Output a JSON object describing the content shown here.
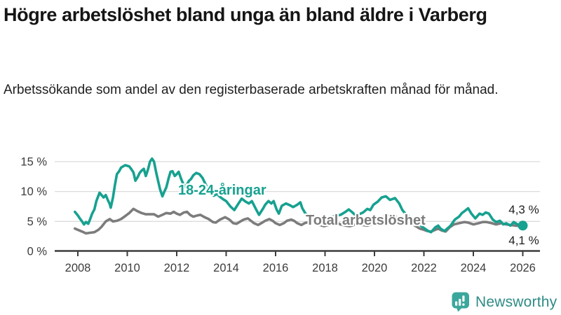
{
  "header": {
    "title": "Högre arbetslöshet bland unga än bland äldre i Varberg",
    "subtitle": "Arbetssökande som andel av den registerbaserade arbetskraften månad för månad."
  },
  "footer": {
    "brand": "Newsworthy",
    "logo_icon": "speech-bubble-bar-chart-icon"
  },
  "colors": {
    "youth_line": "#17A190",
    "total_line": "#7C7C7C",
    "grid": "#DBDBDB",
    "axis": "#3C3C3C",
    "tick_text": "#3C3C3C",
    "brand_icon_teal": "#3BA79C",
    "brand_text_teal": "#2E8B85"
  },
  "chart_data": {
    "type": "line",
    "title": "Högre arbetslöshet bland unga än bland äldre i Varberg",
    "xlabel": "",
    "ylabel": "",
    "grid": "horizontal",
    "legend_position": "inline-labels",
    "xlim": [
      2007.8,
      2026.75
    ],
    "ylim": [
      0,
      16.5
    ],
    "x_ticks": [
      2008,
      2010,
      2012,
      2014,
      2016,
      2018,
      2020,
      2022,
      2024,
      2026
    ],
    "y_ticks": [
      0,
      5,
      10,
      15
    ],
    "y_tick_labels": [
      "0 %",
      "5 %",
      "10 %",
      "15 %"
    ],
    "series": [
      {
        "name": "18-24-åringar",
        "label_text": "18-24-åringar",
        "end_label": "4,3 %",
        "end_value": 4.3,
        "color": "#17A190",
        "end_dot": true,
        "points": [
          [
            2007.88,
            6.6
          ],
          [
            2008.0,
            6.0
          ],
          [
            2008.08,
            5.5
          ],
          [
            2008.17,
            5.0
          ],
          [
            2008.25,
            4.5
          ],
          [
            2008.33,
            4.9
          ],
          [
            2008.42,
            4.6
          ],
          [
            2008.5,
            5.4
          ],
          [
            2008.58,
            6.3
          ],
          [
            2008.67,
            7.0
          ],
          [
            2008.75,
            8.4
          ],
          [
            2008.88,
            9.8
          ],
          [
            2008.96,
            9.4
          ],
          [
            2009.04,
            9.0
          ],
          [
            2009.13,
            9.4
          ],
          [
            2009.21,
            8.6
          ],
          [
            2009.29,
            7.9
          ],
          [
            2009.33,
            7.3
          ],
          [
            2009.42,
            9.0
          ],
          [
            2009.5,
            11.1
          ],
          [
            2009.58,
            12.9
          ],
          [
            2009.67,
            13.4
          ],
          [
            2009.75,
            14.0
          ],
          [
            2009.83,
            14.2
          ],
          [
            2009.92,
            14.4
          ],
          [
            2010.0,
            14.3
          ],
          [
            2010.08,
            14.2
          ],
          [
            2010.17,
            13.7
          ],
          [
            2010.25,
            13.2
          ],
          [
            2010.33,
            11.8
          ],
          [
            2010.42,
            12.4
          ],
          [
            2010.5,
            13.1
          ],
          [
            2010.58,
            13.5
          ],
          [
            2010.67,
            13.8
          ],
          [
            2010.75,
            12.6
          ],
          [
            2010.83,
            13.6
          ],
          [
            2010.92,
            15.0
          ],
          [
            2011.0,
            15.5
          ],
          [
            2011.08,
            15.0
          ],
          [
            2011.17,
            13.2
          ],
          [
            2011.25,
            11.7
          ],
          [
            2011.33,
            10.3
          ],
          [
            2011.42,
            9.2
          ],
          [
            2011.5,
            10.0
          ],
          [
            2011.58,
            10.7
          ],
          [
            2011.67,
            12.2
          ],
          [
            2011.75,
            13.3
          ],
          [
            2011.83,
            13.4
          ],
          [
            2011.92,
            12.6
          ],
          [
            2012.0,
            12.9
          ],
          [
            2012.08,
            13.3
          ],
          [
            2012.17,
            12.2
          ],
          [
            2012.25,
            11.4
          ],
          [
            2012.33,
            10.8
          ],
          [
            2012.42,
            11.2
          ],
          [
            2012.5,
            11.8
          ],
          [
            2012.58,
            12.1
          ],
          [
            2012.67,
            12.7
          ],
          [
            2012.79,
            13.1
          ],
          [
            2012.92,
            12.9
          ],
          [
            2013.04,
            12.3
          ],
          [
            2013.17,
            11.2
          ],
          [
            2013.33,
            10.0
          ],
          [
            2013.5,
            9.3
          ],
          [
            2013.63,
            9.6
          ],
          [
            2013.75,
            9.1
          ],
          [
            2013.88,
            8.7
          ],
          [
            2014.0,
            8.4
          ],
          [
            2014.17,
            7.5
          ],
          [
            2014.33,
            6.9
          ],
          [
            2014.5,
            8.0
          ],
          [
            2014.63,
            8.8
          ],
          [
            2014.79,
            8.3
          ],
          [
            2014.92,
            8.0
          ],
          [
            2015.04,
            8.4
          ],
          [
            2015.21,
            7.0
          ],
          [
            2015.33,
            6.1
          ],
          [
            2015.5,
            7.2
          ],
          [
            2015.58,
            7.8
          ],
          [
            2015.71,
            8.4
          ],
          [
            2015.83,
            8.0
          ],
          [
            2015.92,
            8.4
          ],
          [
            2016.04,
            7.0
          ],
          [
            2016.13,
            6.3
          ],
          [
            2016.25,
            7.6
          ],
          [
            2016.42,
            8.0
          ],
          [
            2016.58,
            7.7
          ],
          [
            2016.71,
            7.4
          ],
          [
            2016.88,
            7.8
          ],
          [
            2017.0,
            8.2
          ],
          [
            2017.08,
            7.2
          ],
          [
            2017.21,
            6.3
          ],
          [
            2017.38,
            5.8
          ],
          [
            2017.58,
            5.4
          ],
          [
            2017.79,
            5.1
          ],
          [
            2018.0,
            5.4
          ],
          [
            2018.21,
            5.7
          ],
          [
            2018.42,
            5.9
          ],
          [
            2018.63,
            6.1
          ],
          [
            2018.83,
            6.6
          ],
          [
            2018.96,
            7.0
          ],
          [
            2019.08,
            6.6
          ],
          [
            2019.21,
            6.1
          ],
          [
            2019.38,
            6.2
          ],
          [
            2019.54,
            6.5
          ],
          [
            2019.71,
            7.1
          ],
          [
            2019.83,
            6.9
          ],
          [
            2019.96,
            7.8
          ],
          [
            2020.13,
            8.3
          ],
          [
            2020.29,
            9.0
          ],
          [
            2020.46,
            9.2
          ],
          [
            2020.63,
            8.6
          ],
          [
            2020.83,
            8.9
          ],
          [
            2021.0,
            8.0
          ],
          [
            2021.13,
            6.9
          ],
          [
            2021.25,
            6.3
          ],
          [
            2021.42,
            5.7
          ],
          [
            2021.63,
            5.0
          ],
          [
            2021.83,
            4.4
          ],
          [
            2022.0,
            3.9
          ],
          [
            2022.17,
            3.4
          ],
          [
            2022.29,
            3.2
          ],
          [
            2022.46,
            4.0
          ],
          [
            2022.58,
            4.3
          ],
          [
            2022.67,
            3.8
          ],
          [
            2022.83,
            3.4
          ],
          [
            2023.0,
            4.0
          ],
          [
            2023.08,
            4.3
          ],
          [
            2023.25,
            5.3
          ],
          [
            2023.42,
            5.8
          ],
          [
            2023.54,
            6.4
          ],
          [
            2023.67,
            6.8
          ],
          [
            2023.79,
            7.2
          ],
          [
            2023.92,
            6.3
          ],
          [
            2024.08,
            5.5
          ],
          [
            2024.25,
            6.3
          ],
          [
            2024.38,
            6.1
          ],
          [
            2024.5,
            6.5
          ],
          [
            2024.63,
            6.3
          ],
          [
            2024.79,
            5.3
          ],
          [
            2024.92,
            4.9
          ],
          [
            2025.08,
            5.1
          ],
          [
            2025.21,
            4.5
          ],
          [
            2025.33,
            4.7
          ],
          [
            2025.5,
            4.3
          ],
          [
            2025.63,
            4.9
          ],
          [
            2025.79,
            4.5
          ],
          [
            2025.92,
            4.1
          ],
          [
            2026.0,
            4.3
          ]
        ]
      },
      {
        "name": "Total arbetslöshet",
        "label_text": "Total arbetslöshet",
        "end_label": "4,1 %",
        "end_value": 4.1,
        "color": "#7C7C7C",
        "end_dot": false,
        "points": [
          [
            2007.88,
            3.8
          ],
          [
            2008.0,
            3.6
          ],
          [
            2008.17,
            3.3
          ],
          [
            2008.33,
            3.0
          ],
          [
            2008.5,
            3.1
          ],
          [
            2008.67,
            3.2
          ],
          [
            2008.83,
            3.6
          ],
          [
            2008.96,
            4.1
          ],
          [
            2009.13,
            5.0
          ],
          [
            2009.29,
            5.4
          ],
          [
            2009.42,
            5.0
          ],
          [
            2009.58,
            5.1
          ],
          [
            2009.75,
            5.4
          ],
          [
            2009.92,
            5.9
          ],
          [
            2010.08,
            6.4
          ],
          [
            2010.25,
            7.1
          ],
          [
            2010.42,
            6.7
          ],
          [
            2010.58,
            6.4
          ],
          [
            2010.75,
            6.2
          ],
          [
            2010.92,
            6.2
          ],
          [
            2011.08,
            6.2
          ],
          [
            2011.25,
            5.8
          ],
          [
            2011.42,
            6.1
          ],
          [
            2011.58,
            6.4
          ],
          [
            2011.75,
            6.3
          ],
          [
            2011.88,
            6.6
          ],
          [
            2012.0,
            6.3
          ],
          [
            2012.13,
            6.1
          ],
          [
            2012.29,
            6.5
          ],
          [
            2012.42,
            6.6
          ],
          [
            2012.54,
            6.1
          ],
          [
            2012.67,
            5.8
          ],
          [
            2012.83,
            6.0
          ],
          [
            2012.96,
            6.1
          ],
          [
            2013.13,
            5.7
          ],
          [
            2013.29,
            5.4
          ],
          [
            2013.46,
            4.9
          ],
          [
            2013.58,
            4.8
          ],
          [
            2013.75,
            5.3
          ],
          [
            2013.96,
            5.7
          ],
          [
            2014.13,
            5.3
          ],
          [
            2014.29,
            4.7
          ],
          [
            2014.42,
            4.6
          ],
          [
            2014.58,
            5.0
          ],
          [
            2014.71,
            5.3
          ],
          [
            2014.88,
            5.5
          ],
          [
            2015.0,
            5.1
          ],
          [
            2015.13,
            4.7
          ],
          [
            2015.29,
            4.4
          ],
          [
            2015.46,
            4.8
          ],
          [
            2015.58,
            5.1
          ],
          [
            2015.75,
            5.4
          ],
          [
            2015.88,
            5.1
          ],
          [
            2016.0,
            4.7
          ],
          [
            2016.17,
            4.4
          ],
          [
            2016.33,
            4.7
          ],
          [
            2016.46,
            5.1
          ],
          [
            2016.63,
            5.3
          ],
          [
            2016.75,
            5.1
          ],
          [
            2016.88,
            4.7
          ],
          [
            2017.04,
            4.4
          ],
          [
            2017.17,
            4.7
          ],
          [
            2017.33,
            4.9
          ],
          [
            2017.46,
            5.1
          ],
          [
            2017.63,
            4.8
          ],
          [
            2017.79,
            4.4
          ],
          [
            2017.96,
            4.2
          ],
          [
            2018.13,
            4.4
          ],
          [
            2018.29,
            4.7
          ],
          [
            2018.46,
            4.8
          ],
          [
            2018.63,
            4.5
          ],
          [
            2018.83,
            4.3
          ],
          [
            2019.0,
            4.2
          ],
          [
            2019.17,
            4.4
          ],
          [
            2019.33,
            4.6
          ],
          [
            2019.5,
            4.4
          ],
          [
            2019.71,
            4.3
          ],
          [
            2019.88,
            4.5
          ],
          [
            2020.04,
            4.7
          ],
          [
            2020.21,
            5.3
          ],
          [
            2020.38,
            5.8
          ],
          [
            2020.54,
            6.0
          ],
          [
            2020.71,
            5.8
          ],
          [
            2020.92,
            5.7
          ],
          [
            2021.08,
            5.5
          ],
          [
            2021.25,
            5.1
          ],
          [
            2021.46,
            4.7
          ],
          [
            2021.67,
            4.2
          ],
          [
            2021.83,
            3.8
          ],
          [
            2022.0,
            3.6
          ],
          [
            2022.13,
            3.4
          ],
          [
            2022.29,
            3.3
          ],
          [
            2022.46,
            3.6
          ],
          [
            2022.58,
            3.8
          ],
          [
            2022.71,
            3.5
          ],
          [
            2022.88,
            3.3
          ],
          [
            2023.04,
            4.0
          ],
          [
            2023.21,
            4.5
          ],
          [
            2023.42,
            4.7
          ],
          [
            2023.63,
            4.9
          ],
          [
            2023.79,
            4.8
          ],
          [
            2024.0,
            4.5
          ],
          [
            2024.21,
            4.7
          ],
          [
            2024.38,
            4.9
          ],
          [
            2024.54,
            4.9
          ],
          [
            2024.75,
            4.7
          ],
          [
            2024.92,
            4.5
          ],
          [
            2025.13,
            4.7
          ],
          [
            2025.33,
            4.5
          ],
          [
            2025.5,
            4.4
          ],
          [
            2025.71,
            4.3
          ],
          [
            2025.88,
            4.2
          ],
          [
            2026.0,
            4.1
          ]
        ]
      }
    ]
  }
}
